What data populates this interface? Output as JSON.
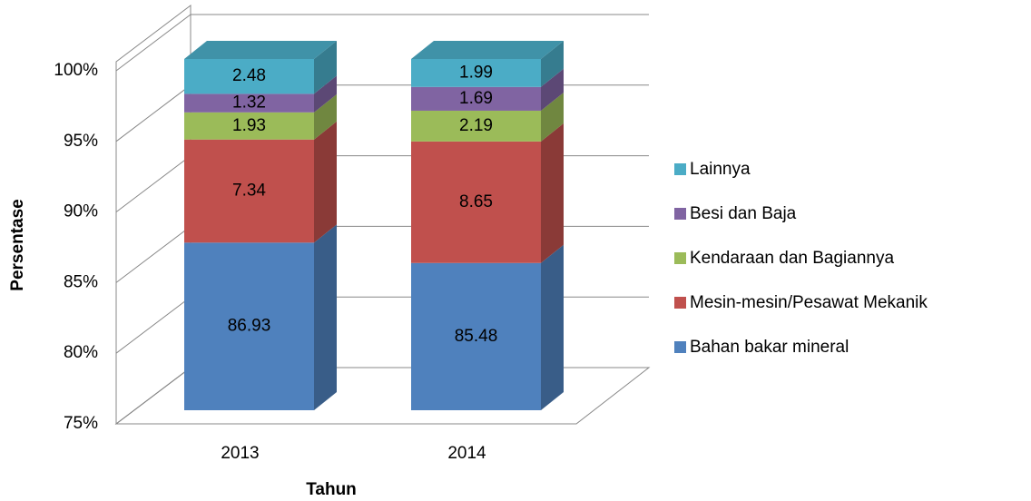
{
  "chart_data": {
    "type": "bar3d_stacked",
    "categories": [
      "2013",
      "2014"
    ],
    "series": [
      {
        "name": "Bahan bakar mineral",
        "color": "#4f81bd",
        "values": [
          86.93,
          85.48
        ]
      },
      {
        "name": "Mesin-mesin/Pesawat Mekanik",
        "color": "#c0504d",
        "values": [
          7.34,
          8.65
        ]
      },
      {
        "name": "Kendaraan dan Bagiannya",
        "color": "#9bbb59",
        "values": [
          1.93,
          2.19
        ]
      },
      {
        "name": "Besi dan Baja",
        "color": "#8064a2",
        "values": [
          1.32,
          1.69
        ]
      },
      {
        "name": "Lainnya",
        "color": "#4bacc6",
        "values": [
          2.48,
          1.99
        ]
      }
    ],
    "ylim": [
      75,
      100
    ],
    "yticks": [
      {
        "value": 75,
        "label": "75%"
      },
      {
        "value": 80,
        "label": "80%"
      },
      {
        "value": 85,
        "label": "85%"
      },
      {
        "value": 90,
        "label": "90%"
      },
      {
        "value": 95,
        "label": "95%"
      },
      {
        "value": 100,
        "label": "100%"
      }
    ],
    "xlabel": "Tahun",
    "ylabel": "Persentase",
    "grid": true,
    "legend": "right"
  }
}
